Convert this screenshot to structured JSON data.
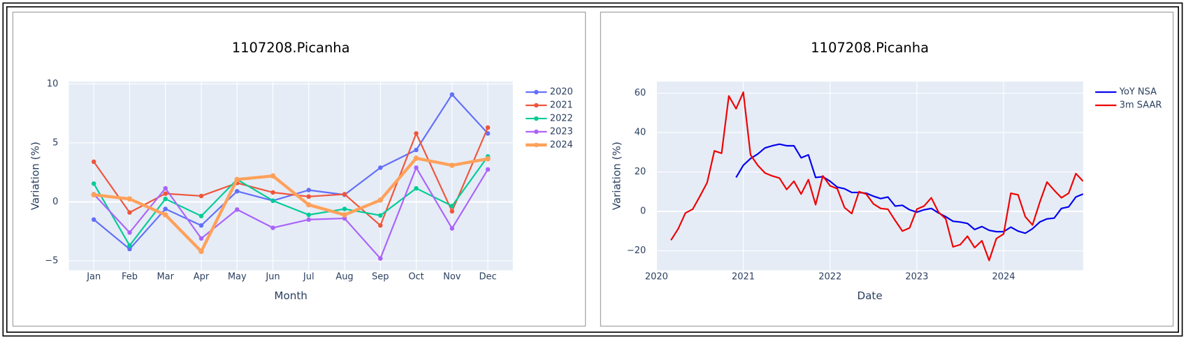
{
  "chart_data": [
    {
      "type": "line",
      "title": "1107208.Picanha",
      "x_label": "Month",
      "y_label": "Variation (%)",
      "categories": [
        "Jan",
        "Feb",
        "Mar",
        "Apr",
        "May",
        "Jun",
        "Jul",
        "Aug",
        "Sep",
        "Oct",
        "Nov",
        "Dec"
      ],
      "ylim": [
        -5.8,
        10.2
      ],
      "yticks": [
        {
          "value": -5,
          "label": "−5"
        },
        0,
        5,
        10
      ],
      "grid": true,
      "markers": true,
      "legend": "outside-right",
      "series": [
        {
          "name": "2020",
          "color": "#636efa",
          "line_width": 2,
          "values": [
            -1.5,
            -4.0,
            -0.6,
            -2.0,
            0.9,
            0.1,
            1.0,
            0.6,
            2.9,
            4.4,
            9.1,
            5.8
          ]
        },
        {
          "name": "2021",
          "color": "#ef553b",
          "line_width": 2,
          "values": [
            3.4,
            -0.9,
            0.7,
            0.5,
            1.6,
            0.8,
            0.45,
            0.65,
            -2.0,
            5.8,
            -0.8,
            6.3
          ]
        },
        {
          "name": "2022",
          "color": "#00cc96",
          "line_width": 2,
          "values": [
            1.55,
            -3.7,
            0.25,
            -1.2,
            1.9,
            0.1,
            -1.1,
            -0.6,
            -1.15,
            1.15,
            -0.35,
            3.85
          ]
        },
        {
          "name": "2023",
          "color": "#ab63fa",
          "line_width": 2,
          "values": [
            0.65,
            -2.6,
            1.15,
            -3.1,
            -0.65,
            -2.2,
            -1.5,
            -1.4,
            -4.8,
            2.9,
            -2.25,
            2.75
          ]
        },
        {
          "name": "2024",
          "color": "#ffa15a",
          "line_width": 4,
          "values": [
            0.6,
            0.25,
            -1.1,
            -4.2,
            1.9,
            2.2,
            -0.25,
            -1.1,
            0.15,
            3.7,
            3.1,
            3.65
          ]
        }
      ]
    },
    {
      "type": "line",
      "title": "1107208.Picanha",
      "x_label": "Date",
      "y_label": "Variation (%)",
      "x": [
        "2020-03",
        "2020-04",
        "2020-05",
        "2020-06",
        "2020-07",
        "2020-08",
        "2020-09",
        "2020-10",
        "2020-11",
        "2020-12",
        "2021-01",
        "2021-02",
        "2021-03",
        "2021-04",
        "2021-05",
        "2021-06",
        "2021-07",
        "2021-08",
        "2021-09",
        "2021-10",
        "2021-11",
        "2021-12",
        "2022-01",
        "2022-02",
        "2022-03",
        "2022-04",
        "2022-05",
        "2022-06",
        "2022-07",
        "2022-08",
        "2022-09",
        "2022-10",
        "2022-11",
        "2022-12",
        "2023-01",
        "2023-02",
        "2023-03",
        "2023-04",
        "2023-05",
        "2023-06",
        "2023-07",
        "2023-08",
        "2023-09",
        "2023-10",
        "2023-11",
        "2023-12",
        "2024-01",
        "2024-02",
        "2024-03",
        "2024-04",
        "2024-05",
        "2024-06",
        "2024-07",
        "2024-08",
        "2024-09",
        "2024-10",
        "2024-11",
        "2024-12"
      ],
      "xlim": [
        "2020-01",
        "2024-12"
      ],
      "xticks": [
        2020,
        2021,
        2022,
        2023,
        2024
      ],
      "ylim": [
        -29.9,
        65.9
      ],
      "yticks": [
        {
          "value": -20,
          "label": "−20"
        },
        0,
        20,
        40,
        60
      ],
      "grid": true,
      "markers": false,
      "legend": "outside-right",
      "series": [
        {
          "name": "YoY NSA",
          "color": "#0000ee",
          "line_width": 2,
          "values": [
            null,
            null,
            null,
            null,
            null,
            null,
            null,
            null,
            null,
            17.2,
            23.4,
            26.8,
            29.1,
            32.2,
            33.3,
            34.1,
            33.3,
            33.3,
            27.2,
            28.7,
            17.2,
            17.6,
            15.3,
            12.3,
            11.5,
            9.6,
            9.6,
            9.2,
            7.7,
            6.5,
            7.3,
            2.7,
            3.1,
            0.8,
            -0.4,
            0.8,
            1.5,
            -0.8,
            -2.7,
            -5.0,
            -5.4,
            -6.1,
            -9.2,
            -7.7,
            -9.6,
            -10.3,
            -10.3,
            -8.0,
            -10.0,
            -11.1,
            -8.8,
            -5.4,
            -3.8,
            -3.4,
            1.5,
            2.3,
            7.3,
            8.8
          ]
        },
        {
          "name": "3m SAAR",
          "color": "#ee0000",
          "line_width": 2,
          "values": [
            -14.6,
            -8.8,
            -0.8,
            1.1,
            7.7,
            14.6,
            30.7,
            29.5,
            58.6,
            52.1,
            60.5,
            28.7,
            23.4,
            19.5,
            18.0,
            16.9,
            11.1,
            15.3,
            8.8,
            16.1,
            3.4,
            18.0,
            13.0,
            11.5,
            1.9,
            -1.1,
            10.0,
            8.8,
            3.8,
            1.5,
            1.1,
            -4.6,
            -10.0,
            -8.4,
            1.1,
            2.7,
            6.9,
            -0.4,
            -3.8,
            -18.0,
            -16.9,
            -12.6,
            -18.4,
            -14.9,
            -24.9,
            -13.8,
            -11.5,
            9.2,
            8.4,
            -2.7,
            -6.9,
            4.6,
            14.9,
            10.7,
            6.9,
            9.2,
            19.2,
            15.3
          ]
        }
      ]
    }
  ]
}
